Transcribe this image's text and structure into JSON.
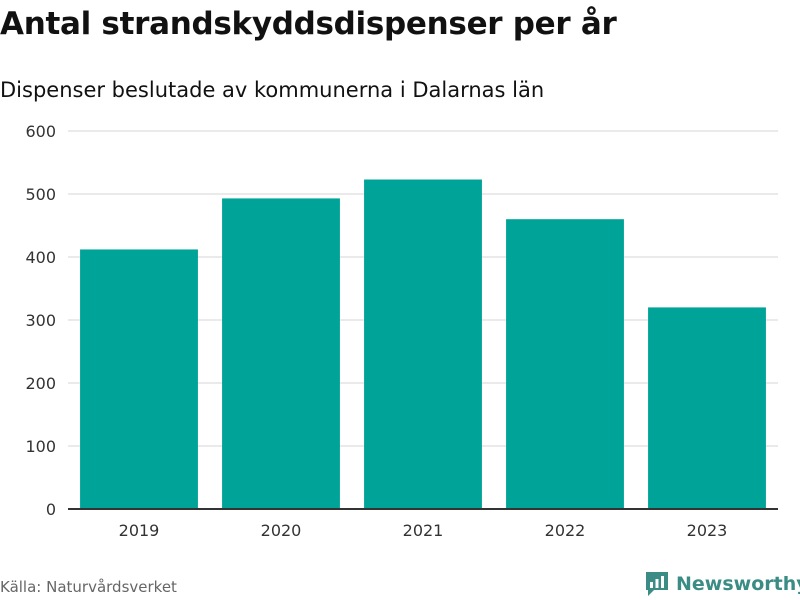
{
  "header": {
    "title": "Antal strandskyddsdispenser per år",
    "subtitle": "Dispenser beslutade av kommunerna i Dalarnas län"
  },
  "footer": {
    "source": "Källa: Naturvårdsverket",
    "brand": "Newsworthy",
    "brand_icon": "newsworthy-logo-icon"
  },
  "colors": {
    "bar": "#00a398",
    "grid": "#dddddd",
    "axis": "#333333",
    "brand": "#3a8c84"
  },
  "chart_data": {
    "type": "bar",
    "title": "Antal strandskyddsdispenser per år",
    "subtitle": "Dispenser beslutade av kommunerna i Dalarnas län",
    "categories": [
      "2019",
      "2020",
      "2021",
      "2022",
      "2023"
    ],
    "values": [
      412,
      493,
      523,
      460,
      320
    ],
    "xlabel": "",
    "ylabel": "",
    "ylim": [
      0,
      600
    ],
    "yticks": [
      0,
      100,
      200,
      300,
      400,
      500,
      600
    ],
    "grid": true,
    "legend": "none"
  }
}
